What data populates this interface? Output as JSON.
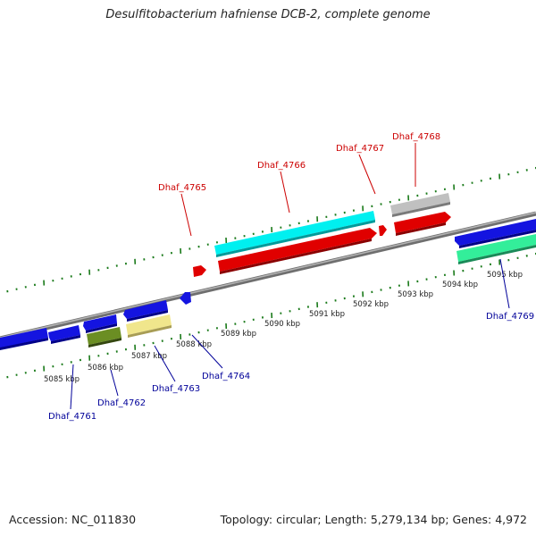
{
  "title": "Desulfitobacterium hafniense DCB-2, complete genome",
  "footer": {
    "accession": "Accession: NC_011830",
    "summary": "Topology: circular; Length: 5,279,134 bp; Genes: 4,972"
  },
  "kbp_labels": [
    "5085 kbp",
    "5086 kbp",
    "5087 kbp",
    "5088 kbp",
    "5089 kbp",
    "5090 kbp",
    "5091 kbp",
    "5092 kbp",
    "5093 kbp",
    "5094 kbp",
    "5095 kbp"
  ],
  "gene_labels": {
    "top": [
      "Dhaf_4765",
      "Dhaf_4766",
      "Dhaf_4767",
      "Dhaf_4768"
    ],
    "bottom": [
      "Dhaf_4761",
      "Dhaf_4762",
      "Dhaf_4763",
      "Dhaf_4764",
      "Dhaf_4769"
    ]
  },
  "colors": {
    "top_label": "#cc0000",
    "bottom_label": "#000099",
    "tick": "#1a7a1a",
    "backbone": "#8c8c8c",
    "blue_gene": "#1414e0",
    "red_gene": "#e00000",
    "cyan_gene": "#00f0f0",
    "olive_gene": "#6b8e23",
    "khaki_gene": "#f0e68c",
    "grey_gene": "#b8b8b8",
    "green_gene": "#33ee9a"
  }
}
